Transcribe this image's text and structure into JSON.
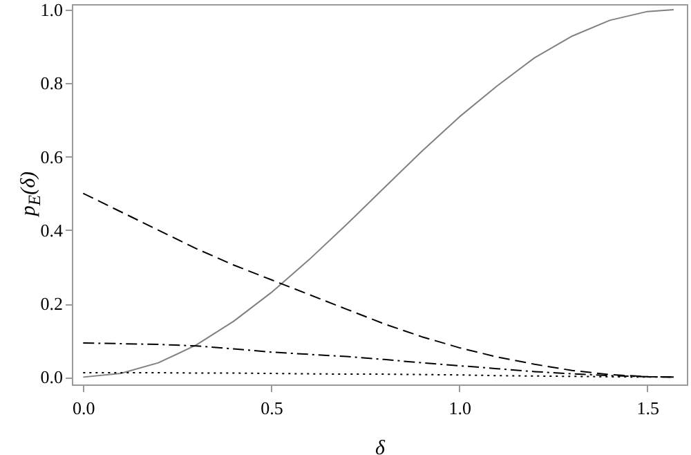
{
  "chart_data": {
    "type": "line",
    "xlabel": "δ",
    "ylabel": "p$_{E}$(δ)",
    "x": [
      0,
      0.1,
      0.2,
      0.3,
      0.4,
      0.5,
      0.6,
      0.7,
      0.8,
      0.9,
      1.0,
      1.1,
      1.2,
      1.3,
      1.4,
      1.5,
      1.57
    ],
    "series": [
      {
        "color": "#808080",
        "line_style": "solid",
        "values": [
          0,
          0.01,
          0.039,
          0.087,
          0.152,
          0.23,
          0.319,
          0.415,
          0.515,
          0.614,
          0.708,
          0.792,
          0.869,
          0.928,
          0.971,
          0.995,
          1.0
        ]
      },
      {
        "color": "#000000",
        "line_style": "dashed",
        "values": [
          0.5,
          0.45,
          0.4,
          0.35,
          0.305,
          0.265,
          0.225,
          0.185,
          0.145,
          0.11,
          0.08,
          0.055,
          0.035,
          0.018,
          0.007,
          0.001,
          0
        ]
      },
      {
        "color": "#000000",
        "line_style": "dashdot",
        "values": [
          0.093,
          0.091,
          0.089,
          0.085,
          0.077,
          0.068,
          0.062,
          0.056,
          0.048,
          0.039,
          0.031,
          0.023,
          0.015,
          0.009,
          0.004,
          0.001,
          0
        ]
      },
      {
        "color": "#000000",
        "line_style": "dotted",
        "values": [
          0.012,
          0.012,
          0.012,
          0.011,
          0.011,
          0.01,
          0.009,
          0.008,
          0.008,
          0.007,
          0.006,
          0.004,
          0.003,
          0.002,
          0.001,
          0,
          0
        ]
      }
    ],
    "xlim": [
      -0.03,
      1.605
    ],
    "ylim": [
      -0.02,
      1.015
    ],
    "xticks": [
      {
        "value": 0,
        "label": "0.0"
      },
      {
        "value": 0.5,
        "label": "0.5"
      },
      {
        "value": 1,
        "label": "1.0"
      },
      {
        "value": 1.5,
        "label": "1.5"
      }
    ],
    "yticks": [
      {
        "value": 0,
        "label": "0.0"
      },
      {
        "value": 0.2,
        "label": "0.2"
      },
      {
        "value": 0.4,
        "label": "0.4"
      },
      {
        "value": 0.6,
        "label": "0.6"
      },
      {
        "value": 0.8,
        "label": "0.8"
      },
      {
        "value": 1,
        "label": "1.0"
      }
    ],
    "grid": false,
    "marker": "none"
  }
}
